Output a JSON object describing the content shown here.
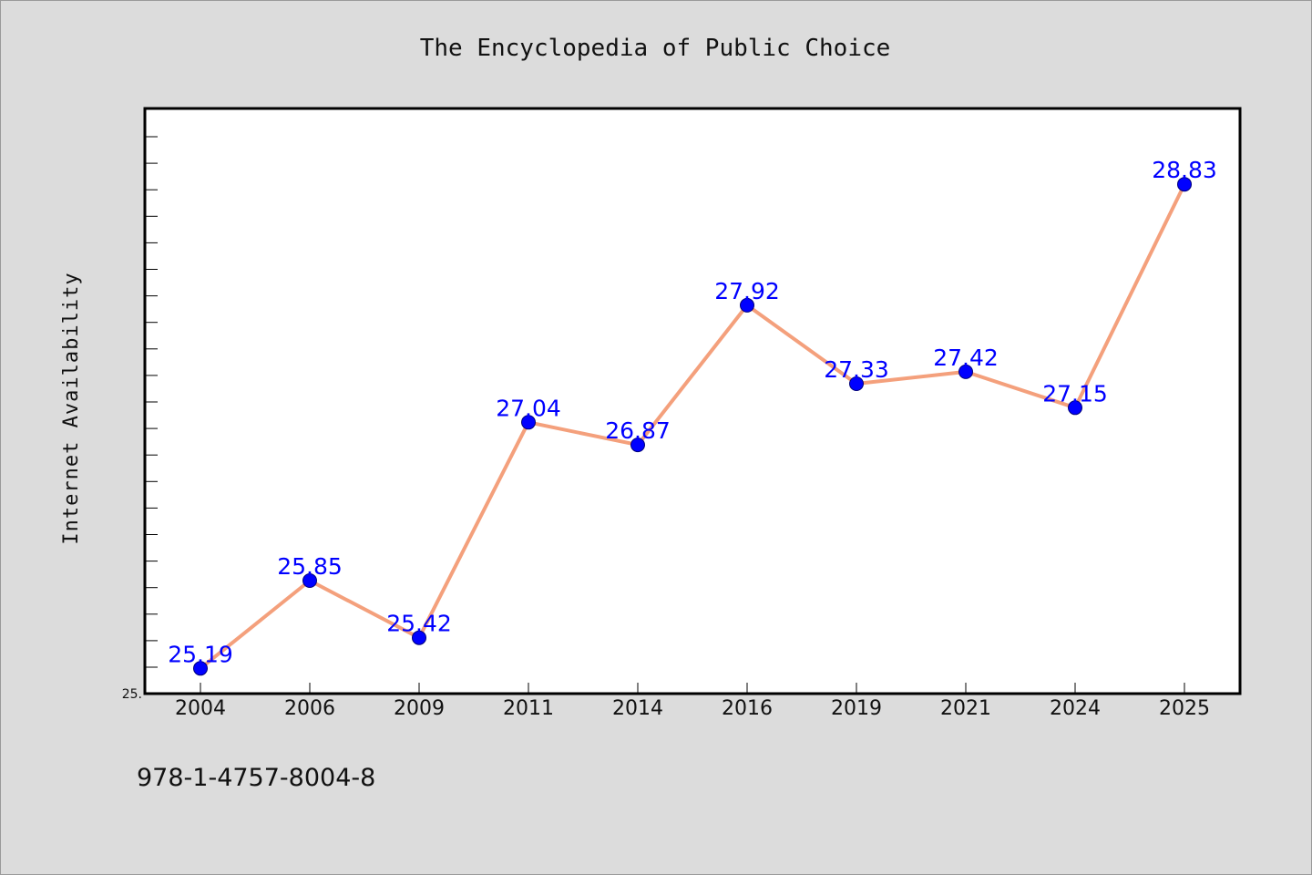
{
  "chart_data": {
    "type": "line",
    "title": "The Encyclopedia of Public Choice",
    "xlabel": "",
    "ylabel": "Internet Availability",
    "categories": [
      "2004",
      "2006",
      "2009",
      "2011",
      "2014",
      "2016",
      "2019",
      "2021",
      "2024",
      "2025"
    ],
    "series": [
      {
        "values": [
          25.19,
          25.85,
          25.42,
          27.04,
          26.87,
          27.92,
          27.33,
          27.42,
          27.15,
          28.83
        ]
      }
    ],
    "data_labels": [
      "25.19",
      "25.85",
      "25.42",
      "27.04",
      "26.87",
      "27.92",
      "27.33",
      "27.42",
      "27.15",
      "28.83"
    ],
    "y_tick_labels": [
      "25."
    ],
    "ylim": [
      25.0,
      29.4
    ],
    "grid": false,
    "colors": {
      "line": "#f4a07c",
      "marker": "#0000ff",
      "label": "#0000ff",
      "background": "#dcdcdc",
      "plot_background": "#ffffff"
    }
  },
  "footer": {
    "text": "978-1-4757-8004-8"
  }
}
